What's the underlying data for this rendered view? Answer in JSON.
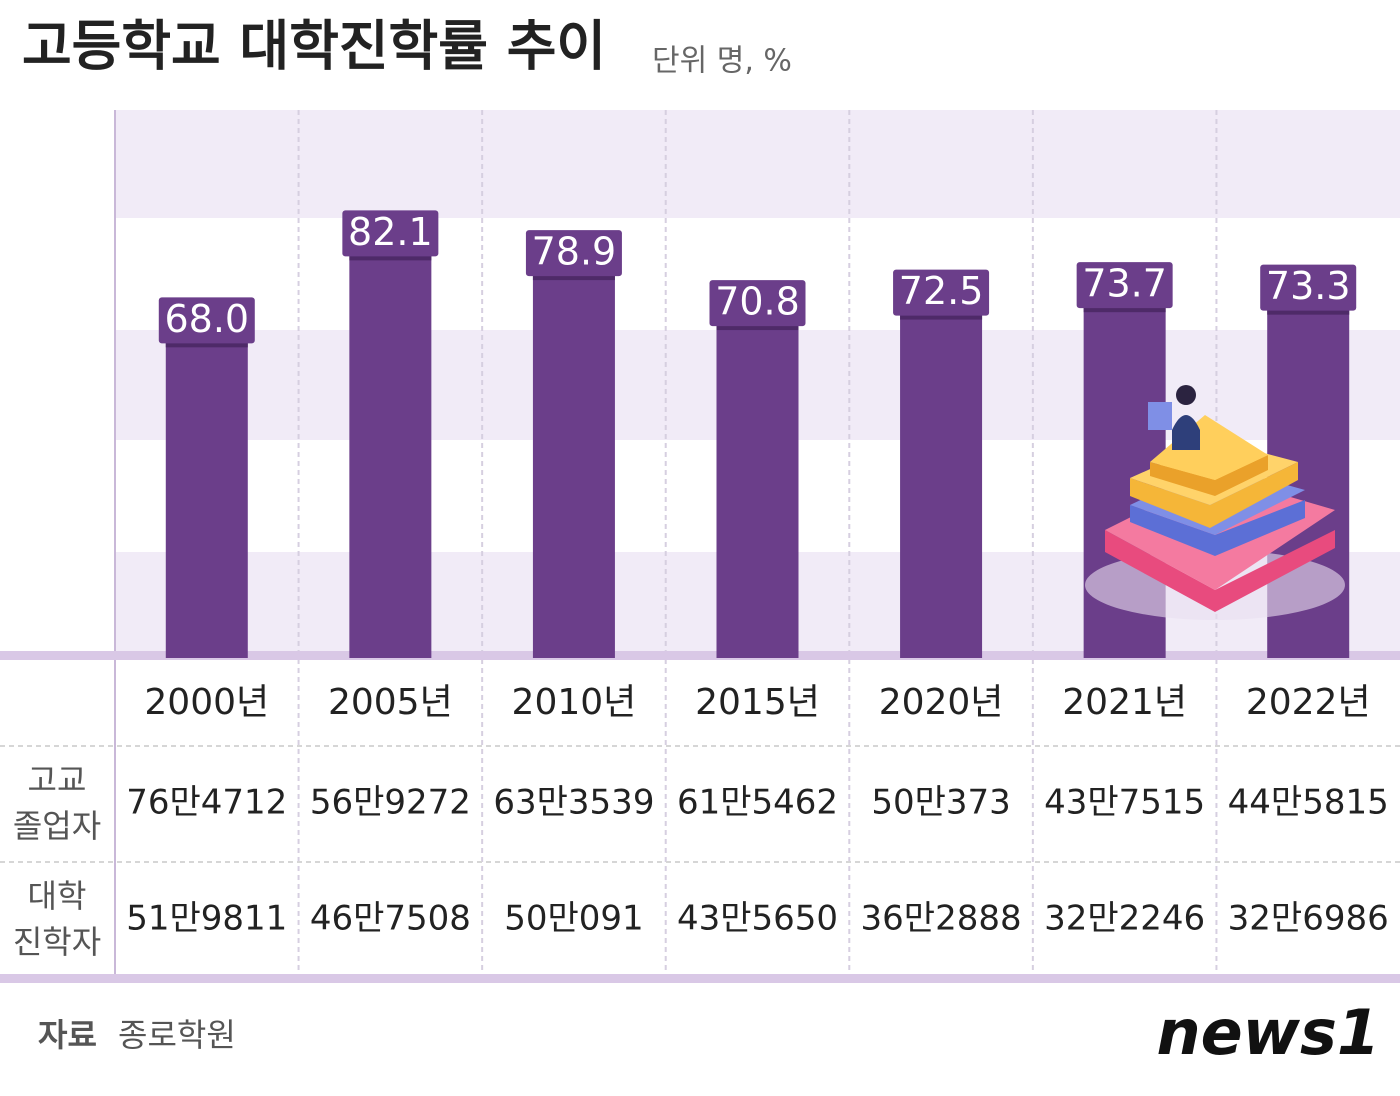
{
  "chart_data": {
    "type": "bar",
    "title": "고등학교 대학진학률 추이",
    "subtitle": "단위 명, %",
    "categories": [
      "2000년",
      "2005년",
      "2010년",
      "2015년",
      "2020년",
      "2021년",
      "2022년"
    ],
    "values": [
      68.0,
      82.1,
      78.9,
      70.8,
      72.5,
      73.7,
      73.3
    ],
    "value_labels": [
      "68.0",
      "82.1",
      "78.9",
      "70.8",
      "72.5",
      "73.7",
      "73.3"
    ],
    "color": "#6b3e8a",
    "ylim": [
      16,
      100
    ]
  },
  "table": {
    "rows": [
      {
        "label": [
          "고교",
          "졸업자"
        ],
        "cells": [
          "76만4712",
          "56만9272",
          "63만3539",
          "61만5462",
          "50만373",
          "43만7515",
          "44만5815"
        ]
      },
      {
        "label": [
          "대학",
          "진학자"
        ],
        "cells": [
          "51만9811",
          "46만7508",
          "50만091",
          "43만5650",
          "36만2888",
          "32만2246",
          "32만6986"
        ]
      }
    ]
  },
  "source": {
    "label": "자료",
    "name": "종로학원"
  },
  "logo": "news1"
}
